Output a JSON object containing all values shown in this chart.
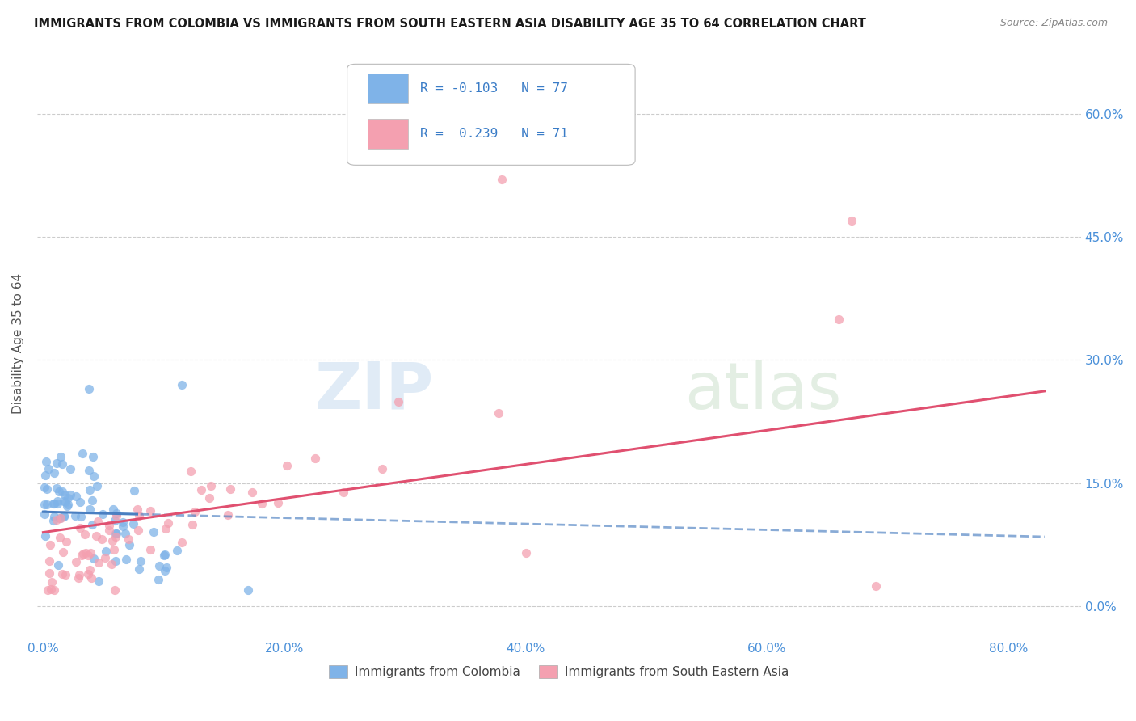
{
  "title": "IMMIGRANTS FROM COLOMBIA VS IMMIGRANTS FROM SOUTH EASTERN ASIA DISABILITY AGE 35 TO 64 CORRELATION CHART",
  "source": "Source: ZipAtlas.com",
  "ylabel_label": "Disability Age 35 to 64",
  "xlim": [
    -0.005,
    0.86
  ],
  "ylim": [
    -0.04,
    0.68
  ],
  "colombia_color": "#7fb3e8",
  "sea_color": "#f4a0b0",
  "colombia_line_color": "#4a7fc1",
  "sea_line_color": "#e05070",
  "colombia_R": -0.103,
  "colombia_N": 77,
  "sea_R": 0.239,
  "sea_N": 71,
  "legend1_label": "Immigrants from Colombia",
  "legend2_label": "Immigrants from South Eastern Asia",
  "x_tick_vals": [
    0.0,
    0.2,
    0.4,
    0.6,
    0.8
  ],
  "y_tick_vals": [
    0.0,
    0.15,
    0.3,
    0.45,
    0.6
  ],
  "grid_color": "#cccccc",
  "title_color": "#1a1a1a",
  "source_color": "#888888",
  "tick_color": "#4a90d9",
  "ylabel_color": "#555555"
}
